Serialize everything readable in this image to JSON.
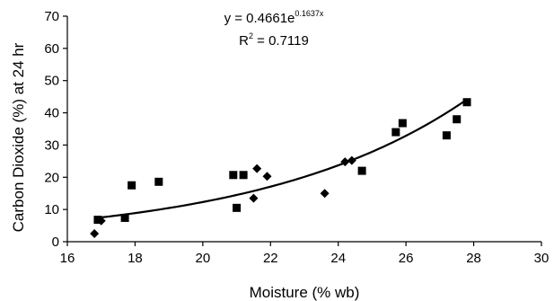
{
  "chart_data": {
    "type": "scatter",
    "title": "",
    "xlabel": "Moisture (% wb)",
    "ylabel": "Carbon Dioxide (%) at 24 hr",
    "xlim": [
      16,
      30
    ],
    "ylim": [
      0,
      70
    ],
    "x_ticks": [
      16,
      18,
      20,
      22,
      24,
      26,
      28,
      30
    ],
    "y_ticks": [
      0,
      10,
      20,
      30,
      40,
      50,
      60,
      70
    ],
    "grid": false,
    "legend": "none",
    "series": [
      {
        "marker": "square",
        "points": [
          [
            16.9,
            6.8
          ],
          [
            17.7,
            7.4
          ],
          [
            17.9,
            17.5
          ],
          [
            18.7,
            18.6
          ],
          [
            20.9,
            20.7
          ],
          [
            21.0,
            10.5
          ],
          [
            21.2,
            20.7
          ],
          [
            24.7,
            22.0
          ],
          [
            25.7,
            34.0
          ],
          [
            25.9,
            36.8
          ],
          [
            27.2,
            33.0
          ],
          [
            27.5,
            38.0
          ],
          [
            27.8,
            43.3
          ]
        ]
      },
      {
        "marker": "diamond",
        "points": [
          [
            16.8,
            2.5
          ],
          [
            17.0,
            6.5
          ],
          [
            21.5,
            13.5
          ],
          [
            21.6,
            22.7
          ],
          [
            21.9,
            20.3
          ],
          [
            23.6,
            15.0
          ],
          [
            24.2,
            24.8
          ],
          [
            24.4,
            25.2
          ]
        ]
      }
    ],
    "trendline": {
      "kind": "exponential",
      "a": 0.4661,
      "b": 0.1637,
      "x_range": [
        16.8,
        27.8
      ],
      "equation_base": "y = 0.4661e",
      "equation_exponent": "0.1637x",
      "r2_base": "R",
      "r2_exponent": "2",
      "r2_value": " = 0.7119"
    },
    "colors": {
      "marker": "#000000",
      "line": "#000000",
      "axis": "#000000"
    }
  }
}
